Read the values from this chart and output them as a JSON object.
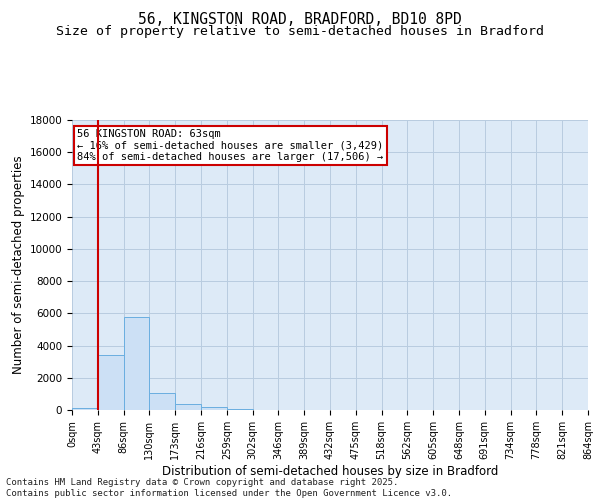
{
  "title_line1": "56, KINGSTON ROAD, BRADFORD, BD10 8PD",
  "title_line2": "Size of property relative to semi-detached houses in Bradford",
  "xlabel": "Distribution of semi-detached houses by size in Bradford",
  "ylabel": "Number of semi-detached properties",
  "annotation_title": "56 KINGSTON ROAD: 63sqm",
  "annotation_line2": "← 16% of semi-detached houses are smaller (3,429)",
  "annotation_line3": "84% of semi-detached houses are larger (17,506) →",
  "footnote_line1": "Contains HM Land Registry data © Crown copyright and database right 2025.",
  "footnote_line2": "Contains public sector information licensed under the Open Government Licence v3.0.",
  "bin_labels": [
    "0sqm",
    "43sqm",
    "86sqm",
    "130sqm",
    "173sqm",
    "216sqm",
    "259sqm",
    "302sqm",
    "346sqm",
    "389sqm",
    "432sqm",
    "475sqm",
    "518sqm",
    "562sqm",
    "605sqm",
    "648sqm",
    "691sqm",
    "734sqm",
    "778sqm",
    "821sqm",
    "864sqm"
  ],
  "bar_values": [
    150,
    3429,
    5800,
    1050,
    400,
    200,
    80,
    30,
    0,
    0,
    0,
    0,
    0,
    0,
    0,
    0,
    0,
    0,
    0,
    0
  ],
  "bar_color": "#cce0f5",
  "bar_edge_color": "#6aaee0",
  "property_line_color": "#cc0000",
  "ylim": [
    0,
    18000
  ],
  "yticks": [
    0,
    2000,
    4000,
    6000,
    8000,
    10000,
    12000,
    14000,
    16000,
    18000
  ],
  "grid_color": "#b8cce0",
  "background_color": "#ddeaf7",
  "annotation_box_color": "#ffffff",
  "annotation_box_edge": "#cc0000",
  "title_fontsize": 10.5,
  "subtitle_fontsize": 9.5,
  "axis_label_fontsize": 8.5,
  "tick_fontsize": 7.5,
  "annotation_fontsize": 7.5,
  "footnote_fontsize": 6.5
}
